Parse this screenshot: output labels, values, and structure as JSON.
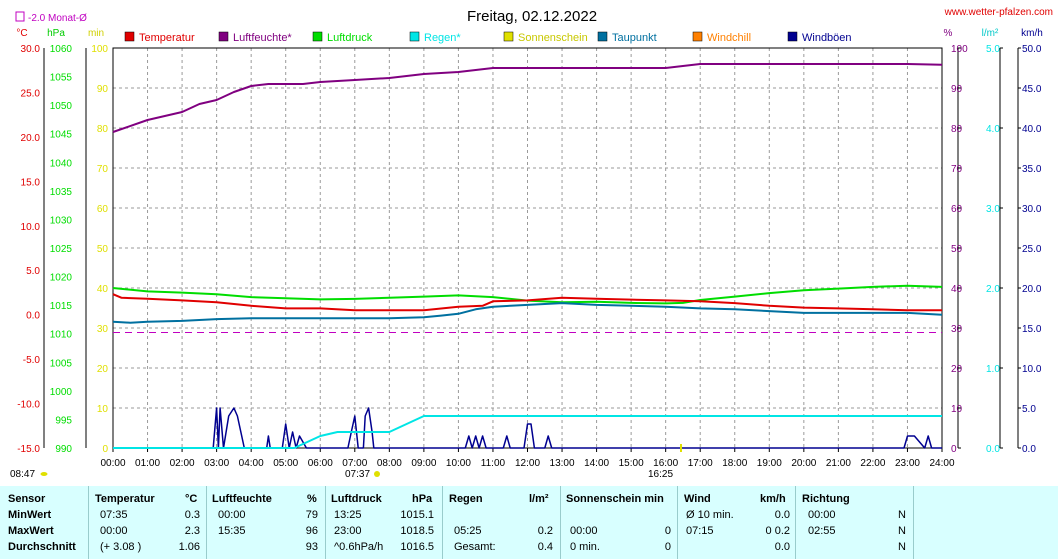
{
  "header": {
    "title": "Freitag, 02.12.2022",
    "site": "www.wetter-pfalzen.com",
    "month_avg_label": "-2.0 Monat-Ø",
    "left_units": [
      "°C",
      "hPa",
      "min"
    ],
    "right_units": [
      "%",
      "l/m²",
      "km/h"
    ],
    "sunrise": "08:47",
    "sunset_left": "07:37",
    "sunset_right": "16:25"
  },
  "colors": {
    "temperature": "#e00000",
    "humidity": "#800080",
    "pressure": "#00dd00",
    "rain": "#00e5e5",
    "sunshine": "#e0e000",
    "dewpoint": "#0070a0",
    "windchill": "#ff8000",
    "gusts": "#000090",
    "month_avg": "#c000c0",
    "grid": "#9a9a9a"
  },
  "chart_data": {
    "type": "line",
    "title": "Freitag, 02.12.2022",
    "x_ticks": [
      "00:00",
      "01:00",
      "02:00",
      "03:00",
      "04:00",
      "05:00",
      "06:00",
      "07:00",
      "08:00",
      "09:00",
      "10:00",
      "11:00",
      "12:00",
      "13:00",
      "14:00",
      "15:00",
      "16:00",
      "17:00",
      "18:00",
      "19:00",
      "20:00",
      "21:00",
      "22:00",
      "23:00",
      "24:00"
    ],
    "axes": {
      "temp": {
        "unit": "°C",
        "range": [
          -15,
          30
        ],
        "ticks": [
          "30.0",
          "25.0",
          "20.0",
          "15.0",
          "10.0",
          "5.0",
          "0.0",
          "-5.0",
          "-10.0",
          "-15.0"
        ]
      },
      "pressure": {
        "unit": "hPa",
        "range": [
          990,
          1060
        ],
        "ticks": [
          "1060",
          "1055",
          "1050",
          "1045",
          "1040",
          "1035",
          "1030",
          "1025",
          "1020",
          "1015",
          "1010",
          "1005",
          "1000",
          "995",
          "990"
        ]
      },
      "minutes": {
        "unit": "min",
        "range": [
          0,
          100
        ],
        "ticks": [
          "100",
          "90",
          "80",
          "70",
          "60",
          "50",
          "40",
          "30",
          "20",
          "10",
          "0"
        ]
      },
      "percent": {
        "unit": "%",
        "range": [
          0,
          100
        ],
        "ticks": [
          "100",
          "90",
          "80",
          "70",
          "60",
          "50",
          "40",
          "30",
          "20",
          "10",
          "0"
        ]
      },
      "rain": {
        "unit": "l/m²",
        "range": [
          0,
          5
        ],
        "ticks": [
          "5.0",
          "4.0",
          "3.0",
          "2.0",
          "1.0",
          "0.0"
        ]
      },
      "wind": {
        "unit": "km/h",
        "range": [
          0,
          50
        ],
        "ticks": [
          "50.0",
          "45.0",
          "40.0",
          "35.0",
          "30.0",
          "25.0",
          "20.0",
          "15.0",
          "10.0",
          "5.0",
          "0.0"
        ]
      }
    },
    "month_avg_temp": -2.0,
    "series": [
      {
        "name": "Temperatur",
        "axis": "temp",
        "x": [
          0,
          0.25,
          1,
          2,
          3,
          4,
          5,
          6,
          7,
          8,
          9,
          10,
          10.7,
          11,
          12,
          13,
          14,
          15,
          16,
          17,
          18,
          19,
          20,
          21,
          22,
          23,
          24
        ],
        "values": [
          2.3,
          1.9,
          1.8,
          1.6,
          1.4,
          1.0,
          0.7,
          0.7,
          0.5,
          0.5,
          0.5,
          0.9,
          1.0,
          1.5,
          1.6,
          1.9,
          1.8,
          1.7,
          1.6,
          1.5,
          1.3,
          1.0,
          0.8,
          0.7,
          0.6,
          0.5,
          0.5
        ]
      },
      {
        "name": "Luftfeuchte*",
        "axis": "percent",
        "x": [
          0,
          1,
          2,
          2.5,
          3,
          3.5,
          4,
          4.5,
          5,
          5.5,
          6,
          7,
          8,
          8.5,
          9,
          10,
          10.5,
          11,
          12,
          13,
          14,
          15,
          16,
          16.5,
          17,
          18,
          19,
          20,
          21,
          22,
          23,
          24
        ],
        "values": [
          79,
          82,
          84,
          86,
          87,
          89,
          90.5,
          91,
          91,
          91,
          91.5,
          92,
          92.5,
          93,
          93.5,
          94,
          94.5,
          95,
          95,
          95,
          95,
          95,
          95,
          95.5,
          96,
          96,
          96,
          96,
          96,
          96,
          96,
          95.8
        ]
      },
      {
        "name": "Luftdruck",
        "axis": "pressure",
        "x": [
          0,
          1,
          2,
          3,
          4,
          5,
          6,
          7,
          8,
          9,
          10,
          11,
          12,
          13,
          14,
          15,
          16,
          16.5,
          17,
          18,
          19,
          20,
          21,
          22,
          23,
          24
        ],
        "values": [
          1018.0,
          1017.4,
          1017.2,
          1016.9,
          1016.4,
          1016.2,
          1016.0,
          1016.1,
          1016.3,
          1016.5,
          1016.7,
          1016.4,
          1015.8,
          1015.5,
          1015.6,
          1015.4,
          1015.3,
          1015.4,
          1015.9,
          1016.5,
          1017.1,
          1017.6,
          1017.9,
          1018.2,
          1018.4,
          1018.2
        ]
      },
      {
        "name": "Regen*",
        "axis": "rain",
        "x": [
          0,
          5.25,
          6,
          6.5,
          7,
          8,
          8.5,
          9,
          10,
          12,
          14,
          16,
          18,
          20,
          22,
          24
        ],
        "values": [
          0.0,
          0.0,
          0.15,
          0.2,
          0.2,
          0.2,
          0.3,
          0.4,
          0.4,
          0.4,
          0.4,
          0.4,
          0.4,
          0.4,
          0.4,
          0.4
        ]
      },
      {
        "name": "Sonnenschein",
        "axis": "minutes",
        "x": [
          0,
          24
        ],
        "values": [
          0,
          0
        ]
      },
      {
        "name": "Taupunkt",
        "axis": "temp",
        "x": [
          0,
          0.5,
          1,
          2,
          3,
          4,
          5,
          6,
          7,
          8,
          9,
          9.5,
          10,
          10.5,
          11,
          12,
          13,
          14,
          15,
          16,
          17,
          18,
          19,
          20,
          21,
          22,
          23,
          24
        ],
        "values": [
          -0.8,
          -0.9,
          -0.8,
          -0.7,
          -0.5,
          -0.4,
          -0.4,
          -0.4,
          -0.4,
          -0.4,
          -0.3,
          -0.1,
          0.1,
          0.6,
          0.9,
          1.1,
          1.3,
          1.1,
          1.0,
          0.9,
          0.7,
          0.6,
          0.4,
          0.2,
          0.2,
          0.2,
          0.2,
          0.0
        ]
      },
      {
        "name": "Windchill",
        "axis": "temp",
        "x": [
          0,
          24
        ],
        "values": [
          0.0,
          0.0
        ]
      },
      {
        "name": "Windböen",
        "axis": "wind",
        "x": [
          0,
          2.9,
          3.0,
          3.05,
          3.1,
          3.2,
          3.35,
          3.5,
          3.6,
          3.8,
          3.9,
          4.0,
          4.45,
          4.5,
          4.55,
          4.6,
          4.9,
          5.0,
          5.1,
          5.2,
          5.3,
          5.4,
          5.6,
          6.8,
          6.9,
          7.0,
          7.1,
          7.25,
          7.3,
          7.4,
          7.5,
          7.55,
          7.6,
          10.2,
          10.3,
          10.4,
          10.5,
          10.6,
          10.7,
          10.8,
          11.3,
          11.4,
          11.5,
          11.9,
          12.0,
          12.1,
          12.2,
          12.3,
          12.5,
          12.6,
          12.7,
          13.0,
          22.9,
          23.0,
          23.1,
          23.2,
          23.5,
          23.6,
          23.7,
          23.9,
          24
        ],
        "values": [
          0,
          0,
          5,
          0,
          5,
          0,
          4,
          5,
          4,
          0,
          0,
          0,
          0,
          1.5,
          0,
          0,
          0,
          3,
          0,
          2,
          0,
          1.5,
          0,
          0,
          2,
          4,
          0,
          0,
          4,
          5,
          2,
          0,
          0,
          0,
          1.5,
          0,
          1.5,
          0,
          1.5,
          0,
          0,
          1.5,
          0,
          0,
          3,
          3,
          0,
          0,
          0,
          1.5,
          0,
          0,
          0,
          1.5,
          1.5,
          1.5,
          0,
          1.5,
          0,
          0,
          0
        ]
      }
    ]
  },
  "stats": {
    "headers": {
      "sensor": "Sensor",
      "temp": "Temperatur",
      "temp_unit": "°C",
      "hum": "Luftfeuchte",
      "hum_unit": "%",
      "press": "Luftdruck",
      "press_unit": "hPa",
      "rain": "Regen",
      "rain_unit": "l/m²",
      "sun": "Sonnenschein min",
      "wind": "Wind",
      "wind_unit": "km/h",
      "dir": "Richtung"
    },
    "rows": [
      {
        "label": "MinWert",
        "t_time": "07:35",
        "t_val": "0.3",
        "h_time": "00:00",
        "h_val": "79",
        "p_time": "13:25",
        "p_val": "1015.1",
        "r_time": "",
        "r_val": "",
        "s_time": "",
        "s_val": "",
        "w_time": "Ø 10 min.",
        "w_val": "0.0",
        "d_time": "00:00",
        "d_val": "N"
      },
      {
        "label": "MaxWert",
        "t_time": "00:00",
        "t_val": "2.3",
        "h_time": "15:35",
        "h_val": "96",
        "p_time": "23:00",
        "p_val": "1018.5",
        "r_time": "05:25",
        "r_val": "0.2",
        "s_time": "00:00",
        "s_val": "0",
        "w_time": "07:15",
        "w_val": "0 0.2",
        "d_time": "02:55",
        "d_val": "N"
      },
      {
        "label": "Durchschnitt",
        "t_time": "(+ 3.08 )",
        "t_val": "1.06",
        "h_time": "",
        "h_val": "93",
        "p_time": "^0.6hPa/h",
        "p_val": "1016.5",
        "r_time": "Gesamt:",
        "r_val": "0.4",
        "s_time": "0 min.",
        "s_val": "0",
        "w_time": "",
        "w_val": "0.0",
        "d_time": "",
        "d_val": "N"
      }
    ]
  }
}
